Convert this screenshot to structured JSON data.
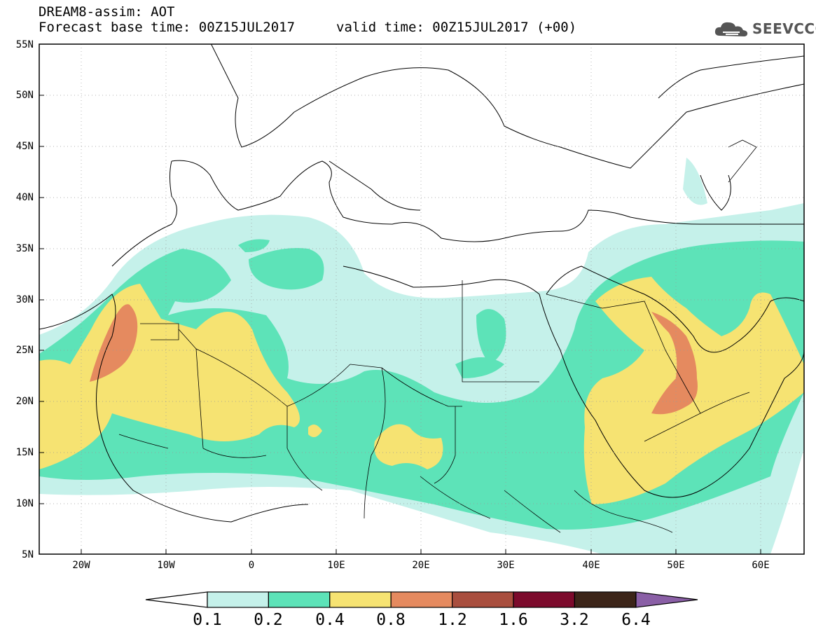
{
  "header": {
    "title_line1": "DREAM8-assim: AOT",
    "title_line2": "Forecast base time: 00Z15JUL2017",
    "valid_time": "valid time: 00Z15JUL2017 (+00)",
    "logo_text": "SEEVCCC"
  },
  "map": {
    "lat_labels": [
      "55N",
      "50N",
      "45N",
      "40N",
      "35N",
      "30N",
      "25N",
      "20N",
      "15N",
      "10N",
      "5N"
    ],
    "lon_labels": [
      "20W",
      "10W",
      "0",
      "10E",
      "20E",
      "30E",
      "40E",
      "50E",
      "60E"
    ],
    "lon_range": [
      -25,
      65
    ],
    "lat_range": [
      5,
      55
    ]
  },
  "colorbar": {
    "labels": [
      "0.1",
      "0.2",
      "0.4",
      "0.8",
      "1.2",
      "1.6",
      "3.2",
      "6.4"
    ],
    "colors": [
      "#c5f1ea",
      "#5de3b8",
      "#f6e372",
      "#e58a5f",
      "#a94e3e",
      "#7c0a2c",
      "#3c2519"
    ],
    "over_color": "#8a5fa6",
    "under_color": "#ffffff"
  },
  "colors": {
    "aot_0_1": "#c5f1ea",
    "aot_0_2": "#5de3b8",
    "aot_0_4": "#f6e372",
    "aot_0_8": "#e58a5f"
  }
}
